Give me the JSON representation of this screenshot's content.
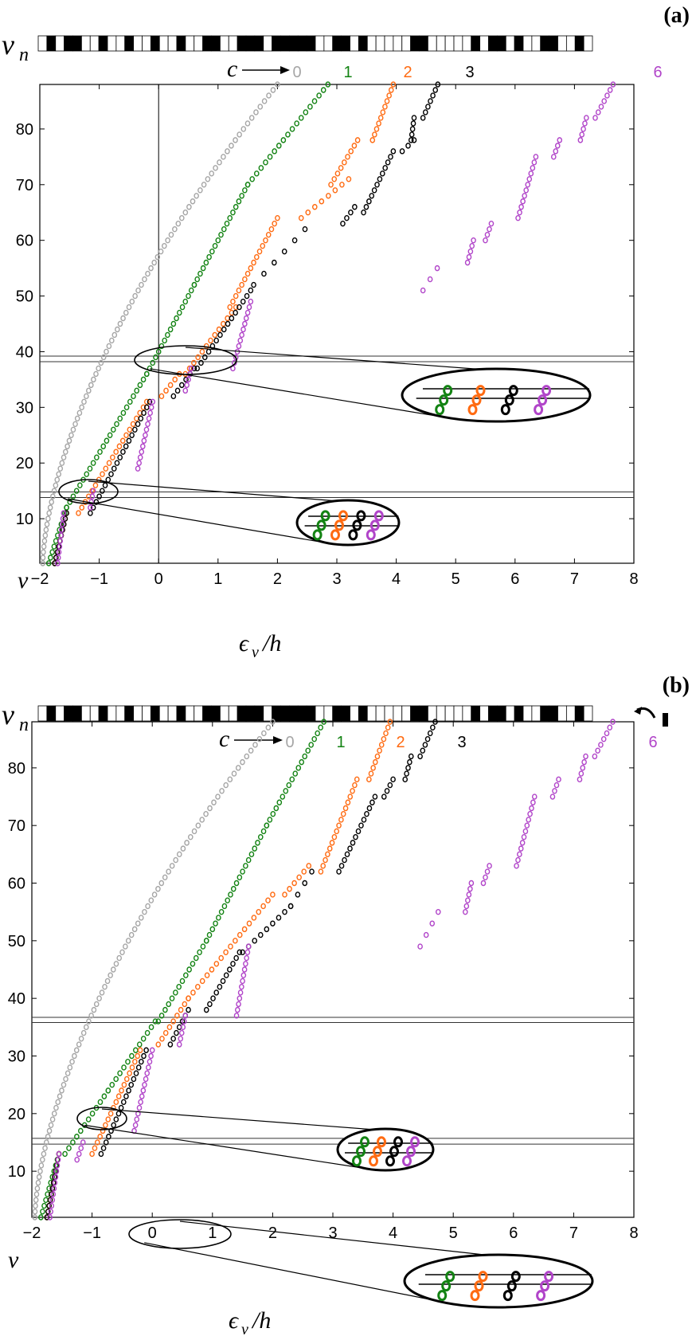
{
  "colors": {
    "c0": "#a6a6a6",
    "c1": "#138313",
    "c2": "#ff6b12",
    "c3": "#000000",
    "c6": "#b145c9"
  },
  "panels": [
    {
      "label": "(a)",
      "vn_label": "v",
      "vn_sub": "n",
      "c_label": "c",
      "c_values": [
        "0",
        "1",
        "2",
        "3",
        "6"
      ],
      "xlabel": "ϵ",
      "xlabel_sub": "ν",
      "xlabel_tail": "/h",
      "ylabel": "ν",
      "has_flip_icon": false
    },
    {
      "label": "(b)",
      "vn_label": "v",
      "vn_sub": "n",
      "c_label": "c",
      "c_values": [
        "0",
        "1",
        "2",
        "3",
        "6"
      ],
      "xlabel": "ϵ",
      "xlabel_sub": "ν",
      "xlabel_tail": "/h",
      "ylabel": "ν",
      "has_flip_icon": true
    }
  ],
  "chart_data": [
    {
      "type": "scatter",
      "panel": "a",
      "xlim": [
        -2,
        8
      ],
      "ylim": [
        2,
        88
      ],
      "xticks": [
        "−2",
        "−1",
        "0",
        "1",
        "2",
        "3",
        "4",
        "5",
        "6",
        "7",
        "8"
      ],
      "yticks": [
        "10",
        "20",
        "30",
        "40",
        "50",
        "60",
        "70",
        "80"
      ],
      "zero_line_x": 0,
      "horizontal_bands": [
        [
          38.2,
          39.2
        ],
        [
          13.8,
          14.8
        ]
      ],
      "series": [
        {
          "name": "0",
          "segments": [
            [
              2,
              88,
              -1.95,
              2.0,
              1
            ]
          ]
        },
        {
          "name": "1",
          "segments": [
            [
              2,
              12,
              -1.85,
              -1.55,
              1
            ],
            [
              12,
              36,
              -1.55,
              -0.2,
              1
            ],
            [
              36,
              52,
              -0.2,
              0.6,
              1
            ],
            [
              52,
              70,
              0.6,
              1.5,
              1
            ],
            [
              70,
              88,
              1.5,
              2.85,
              1
            ]
          ]
        },
        {
          "name": "2",
          "segments": [
            [
              2,
              11,
              -1.75,
              -1.55,
              1
            ],
            [
              11,
              31,
              -1.35,
              -0.2,
              1
            ],
            [
              32,
              36,
              0.05,
              0.35,
              1
            ],
            [
              36,
              48,
              0.45,
              1.3,
              1
            ],
            [
              48,
              64,
              1.2,
              2.0,
              1
            ],
            [
              64,
              71,
              2.4,
              3.2,
              1
            ],
            [
              70,
              78,
              2.9,
              3.35,
              1
            ],
            [
              78,
              88,
              3.6,
              3.95,
              1
            ]
          ]
        },
        {
          "name": "3",
          "segments": [
            [
              2,
              11,
              -1.75,
              -1.55,
              1
            ],
            [
              11,
              31,
              -1.15,
              -0.15,
              1
            ],
            [
              32,
              37,
              0.25,
              0.6,
              1
            ],
            [
              37,
              51,
              0.65,
              1.55,
              1
            ],
            [
              52,
              63,
              1.6,
              2.55,
              2
            ],
            [
              63,
              66,
              3.1,
              3.3,
              1
            ],
            [
              65,
              76,
              3.45,
              3.95,
              1
            ],
            [
              76,
              78,
              4.1,
              4.3,
              1
            ],
            [
              78,
              82,
              4.25,
              4.3,
              1
            ],
            [
              82,
              88,
              4.45,
              4.7,
              1
            ]
          ]
        },
        {
          "name": "6",
          "segments": [
            [
              2,
              11,
              -1.7,
              -1.6,
              1
            ],
            [
              12,
              15,
              -1.15,
              -1.1,
              1
            ],
            [
              19,
              31,
              -0.35,
              -0.1,
              1
            ],
            [
              33,
              37,
              0.45,
              0.55,
              1
            ],
            [
              37,
              49,
              1.25,
              1.55,
              1
            ],
            [
              51,
              56,
              4.45,
              4.75,
              2
            ],
            [
              56,
              60,
              5.2,
              5.3,
              1
            ],
            [
              60,
              63,
              5.5,
              5.6,
              1
            ],
            [
              64,
              75,
              6.05,
              6.35,
              1
            ],
            [
              75,
              78,
              6.65,
              6.75,
              1
            ],
            [
              78,
              82,
              7.1,
              7.2,
              1
            ],
            [
              82,
              88,
              7.35,
              7.65,
              1
            ]
          ]
        }
      ]
    },
    {
      "type": "scatter",
      "panel": "b",
      "xlim": [
        -2,
        8
      ],
      "ylim": [
        2,
        88
      ],
      "xticks": [
        "−2",
        "−1",
        "0",
        "1",
        "2",
        "3",
        "4",
        "5",
        "6",
        "7",
        "8"
      ],
      "yticks": [
        "10",
        "20",
        "30",
        "40",
        "50",
        "60",
        "70",
        "80"
      ],
      "zero_line_x": null,
      "horizontal_bands": [
        [
          35.8,
          36.7
        ],
        [
          14.7,
          15.7
        ]
      ],
      "series": [
        {
          "name": "0",
          "segments": [
            [
              2,
              88,
              -1.95,
              2.0,
              1
            ]
          ]
        },
        {
          "name": "1",
          "segments": [
            [
              2,
              13,
              -1.85,
              -1.55,
              1
            ],
            [
              13,
              36,
              -1.45,
              0.05,
              1
            ],
            [
              36,
              50,
              0.1,
              0.9,
              1
            ],
            [
              50,
              70,
              0.9,
              1.9,
              1
            ],
            [
              70,
              88,
              1.9,
              2.85,
              1
            ]
          ]
        },
        {
          "name": "2",
          "segments": [
            [
              2,
              13,
              -1.75,
              -1.55,
              1
            ],
            [
              13,
              31,
              -1.0,
              -0.2,
              1
            ],
            [
              32,
              40,
              0.1,
              0.6,
              1
            ],
            [
              40,
              58,
              0.6,
              2.0,
              1
            ],
            [
              58,
              63,
              2.2,
              2.6,
              1
            ],
            [
              62,
              78,
              2.8,
              3.4,
              1
            ],
            [
              78,
              88,
              3.6,
              3.95,
              1
            ]
          ]
        },
        {
          "name": "3",
          "segments": [
            [
              2,
              13,
              -1.75,
              -1.55,
              1
            ],
            [
              13,
              31,
              -0.85,
              -0.1,
              1
            ],
            [
              32,
              38,
              0.3,
              0.6,
              1
            ],
            [
              38,
              48,
              0.9,
              1.45,
              1
            ],
            [
              48,
              56,
              1.5,
              2.3,
              1
            ],
            [
              56,
              62,
              2.3,
              2.65,
              2
            ],
            [
              62,
              75,
              3.1,
              3.7,
              1
            ],
            [
              75,
              78,
              3.85,
              4.0,
              1
            ],
            [
              78,
              82,
              4.2,
              4.3,
              1
            ],
            [
              82,
              88,
              4.45,
              4.7,
              1
            ]
          ]
        },
        {
          "name": "6",
          "segments": [
            [
              2,
              13,
              -1.7,
              -1.55,
              1
            ],
            [
              12,
              15,
              -1.25,
              -1.15,
              1
            ],
            [
              17,
              31,
              -0.3,
              0.0,
              1
            ],
            [
              32,
              37,
              0.45,
              0.55,
              1
            ],
            [
              37,
              49,
              1.4,
              1.6,
              1
            ],
            [
              49,
              55,
              4.45,
              4.75,
              2
            ],
            [
              55,
              60,
              5.2,
              5.3,
              1
            ],
            [
              60,
              63,
              5.5,
              5.6,
              1
            ],
            [
              63,
              75,
              6.05,
              6.35,
              1
            ],
            [
              75,
              78,
              6.65,
              6.75,
              1
            ],
            [
              78,
              82,
              7.1,
              7.2,
              1
            ],
            [
              82,
              88,
              7.35,
              7.65,
              1
            ]
          ]
        }
      ]
    }
  ]
}
